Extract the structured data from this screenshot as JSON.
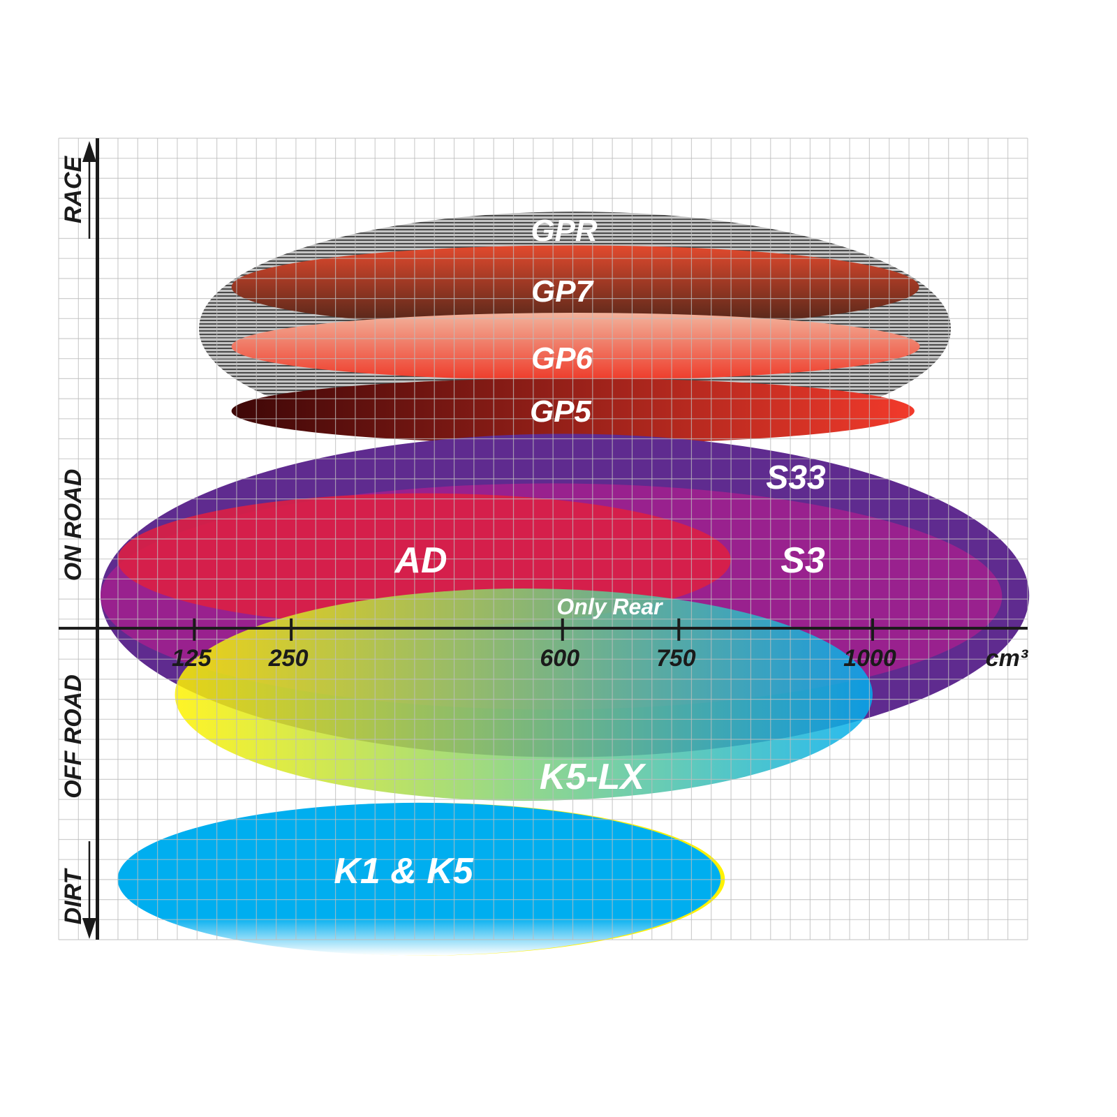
{
  "chart_data": {
    "type": "range-ellipses",
    "xlabel": "cm³",
    "x_ticks": [
      125,
      250,
      600,
      750,
      1000
    ],
    "xlim": [
      -50,
      1200
    ],
    "ylim": [
      -15.7,
      24.7
    ],
    "y_categories": [
      "DIRT",
      "OFF ROAD",
      "ON ROAD",
      "RACE"
    ],
    "grid": true,
    "series": [
      {
        "name": "GPR",
        "x_range": [
          131,
          1101
        ],
        "y_range": [
          9.2,
          21.0
        ],
        "fill": "stripes",
        "colors": [
          "#b5b5b5",
          "#555555"
        ]
      },
      {
        "name": "GP7",
        "x_range": [
          173,
          1060
        ],
        "y_range": [
          15.1,
          19.3
        ],
        "fill": "vertical",
        "colors": [
          "#e34a2e",
          "#4a2418"
        ]
      },
      {
        "name": "GP6",
        "x_range": [
          173,
          1061
        ],
        "y_range": [
          12.5,
          15.9
        ],
        "fill": "vertical",
        "colors": [
          "#f2b39c",
          "#ee3b2a"
        ]
      },
      {
        "name": "GP5",
        "x_range": [
          173,
          1054
        ],
        "y_range": [
          9.3,
          12.6
        ],
        "fill": "horizontal",
        "colors": [
          "#3e0707",
          "#f23a2b"
        ]
      },
      {
        "name": "S33",
        "x_range": [
          4,
          1202
        ],
        "y_range": [
          -6.5,
          9.8
        ],
        "fill": "solid",
        "colors": [
          "#5f2b8f"
        ]
      },
      {
        "name": "S3",
        "x_range": [
          4,
          1167
        ],
        "y_range": [
          -4.1,
          7.3
        ],
        "fill": "solid",
        "colors": [
          "#a0208e"
        ]
      },
      {
        "name": "AD",
        "x_range": [
          26,
          817
        ],
        "y_range": [
          0.1,
          6.8
        ],
        "fill": "solid",
        "colors": [
          "#dc1f44"
        ]
      },
      {
        "name": "K5-LX",
        "x_range": [
          100,
          1000
        ],
        "y_range": [
          -8.7,
          2.0
        ],
        "fill": "horizontal",
        "colors": [
          "#fff200",
          "#00aeef"
        ],
        "note": "Only Rear"
      },
      {
        "name": "K1 & K5",
        "x_range": [
          26,
          804
        ],
        "y_range": [
          -16.5,
          -8.8
        ],
        "fill": "vertical",
        "colors": [
          "#00aeef",
          "#ffffff"
        ]
      }
    ]
  }
}
